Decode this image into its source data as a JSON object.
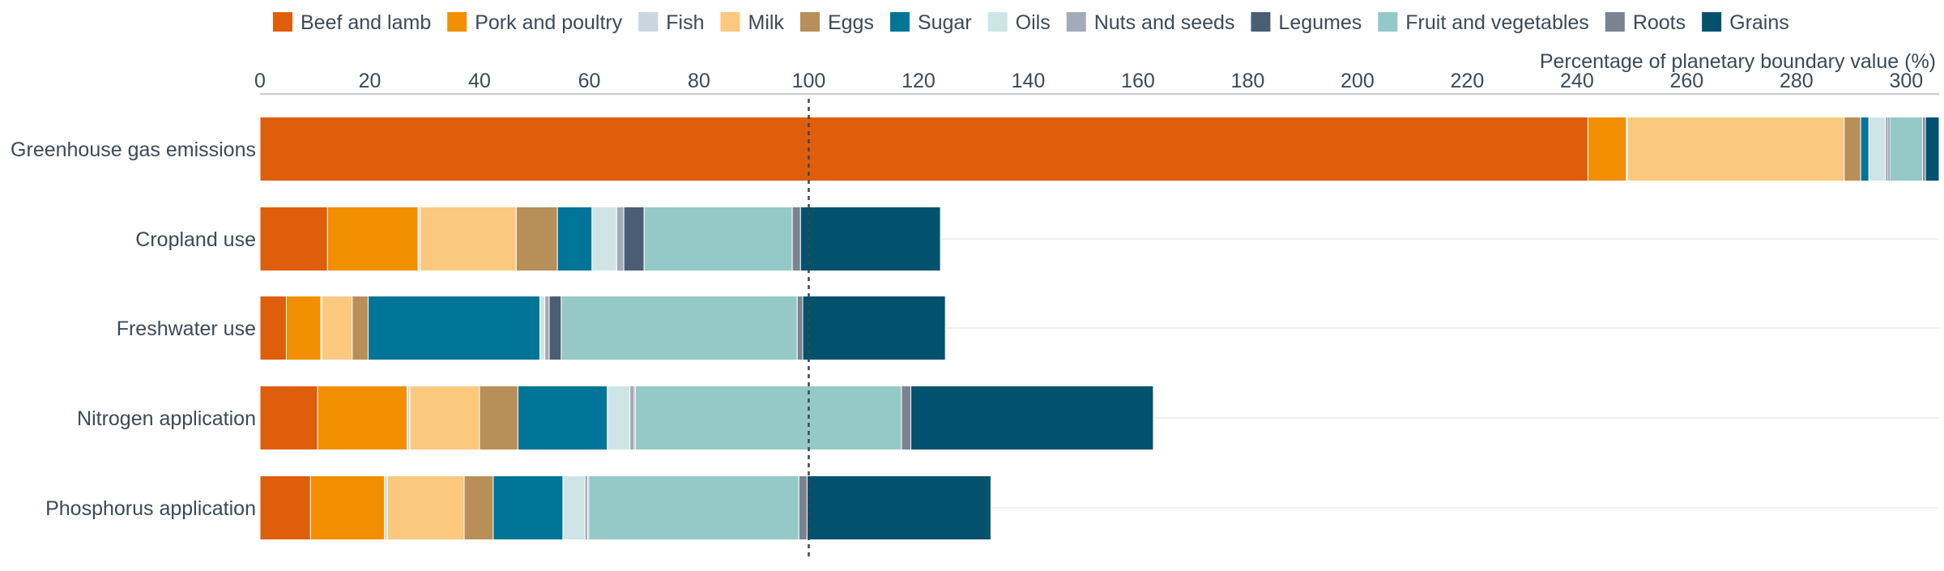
{
  "chart_data": {
    "type": "bar",
    "orientation": "horizontal",
    "stacked": true,
    "title": "",
    "xlabel": "Percentage of planetary boundary value (%)",
    "ylabel": "",
    "xlim": [
      0,
      306
    ],
    "xticks": [
      0,
      20,
      40,
      60,
      80,
      100,
      120,
      140,
      160,
      180,
      200,
      220,
      240,
      260,
      280,
      300
    ],
    "reference_line": 100,
    "legend_position": "top",
    "grid": false,
    "categories": [
      "Greenhouse gas emissions",
      "Cropland use",
      "Freshwater use",
      "Nitrogen application",
      "Phosphorus application"
    ],
    "series": [
      {
        "name": "Beef and lamb",
        "color": "#DE5E0B",
        "values": [
          242,
          12.3,
          4.8,
          10.5,
          9.2
        ]
      },
      {
        "name": "Pork and poultry",
        "color": "#F18F00",
        "values": [
          7,
          16.5,
          6.3,
          16.3,
          13.5
        ]
      },
      {
        "name": "Fish",
        "color": "#C9D6E0",
        "values": [
          0.2,
          0.4,
          0.2,
          0.5,
          0.5
        ]
      },
      {
        "name": "Milk",
        "color": "#FAC97E",
        "values": [
          39.5,
          17.5,
          5.5,
          12.7,
          14
        ]
      },
      {
        "name": "Eggs",
        "color": "#B88F58",
        "values": [
          3,
          7.5,
          2.9,
          7,
          5.3
        ]
      },
      {
        "name": "Sugar",
        "color": "#007597",
        "values": [
          1.5,
          6.3,
          31.3,
          16.3,
          12.7
        ]
      },
      {
        "name": "Oils",
        "color": "#CFE5E5",
        "values": [
          3,
          4.5,
          0.9,
          4.1,
          4
        ]
      },
      {
        "name": "Nuts and seeds",
        "color": "#A3ABB6",
        "values": [
          0.5,
          1.3,
          0.8,
          0.8,
          0.5
        ]
      },
      {
        "name": "Legumes",
        "color": "#4A5E73",
        "values": [
          0.3,
          3.7,
          2.2,
          0.2,
          0.2
        ]
      },
      {
        "name": "Fruit and vegetables",
        "color": "#94C9C8",
        "values": [
          6,
          27,
          43,
          48.5,
          38.3
        ]
      },
      {
        "name": "Roots",
        "color": "#7B8290",
        "values": [
          0.5,
          1.5,
          1,
          1.7,
          1.5
        ]
      },
      {
        "name": "Grains",
        "color": "#02526D",
        "values": [
          3.8,
          25.5,
          26,
          44.2,
          33.5
        ]
      }
    ]
  }
}
